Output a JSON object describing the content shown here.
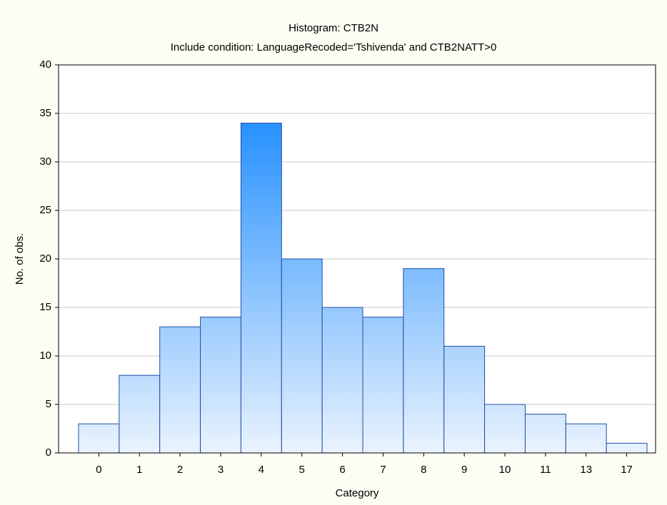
{
  "chart_data": {
    "type": "bar",
    "title": "Histogram: CTB2N",
    "subtitle": "Include condition: LanguageRecoded='Tshivenda' and CTB2NATT>0",
    "x_label": "Category",
    "y_label": "No. of obs.",
    "categories": [
      "0",
      "1",
      "2",
      "3",
      "4",
      "5",
      "6",
      "7",
      "8",
      "9",
      "10",
      "11",
      "13",
      "17"
    ],
    "values": [
      3,
      8,
      13,
      14,
      34,
      20,
      15,
      14,
      19,
      11,
      5,
      4,
      3,
      1
    ],
    "color": "#1e8cff",
    "ylim": [
      0,
      40
    ],
    "yticks": [
      0,
      5,
      10,
      15,
      20,
      25,
      30,
      35,
      40
    ],
    "grid": true
  }
}
